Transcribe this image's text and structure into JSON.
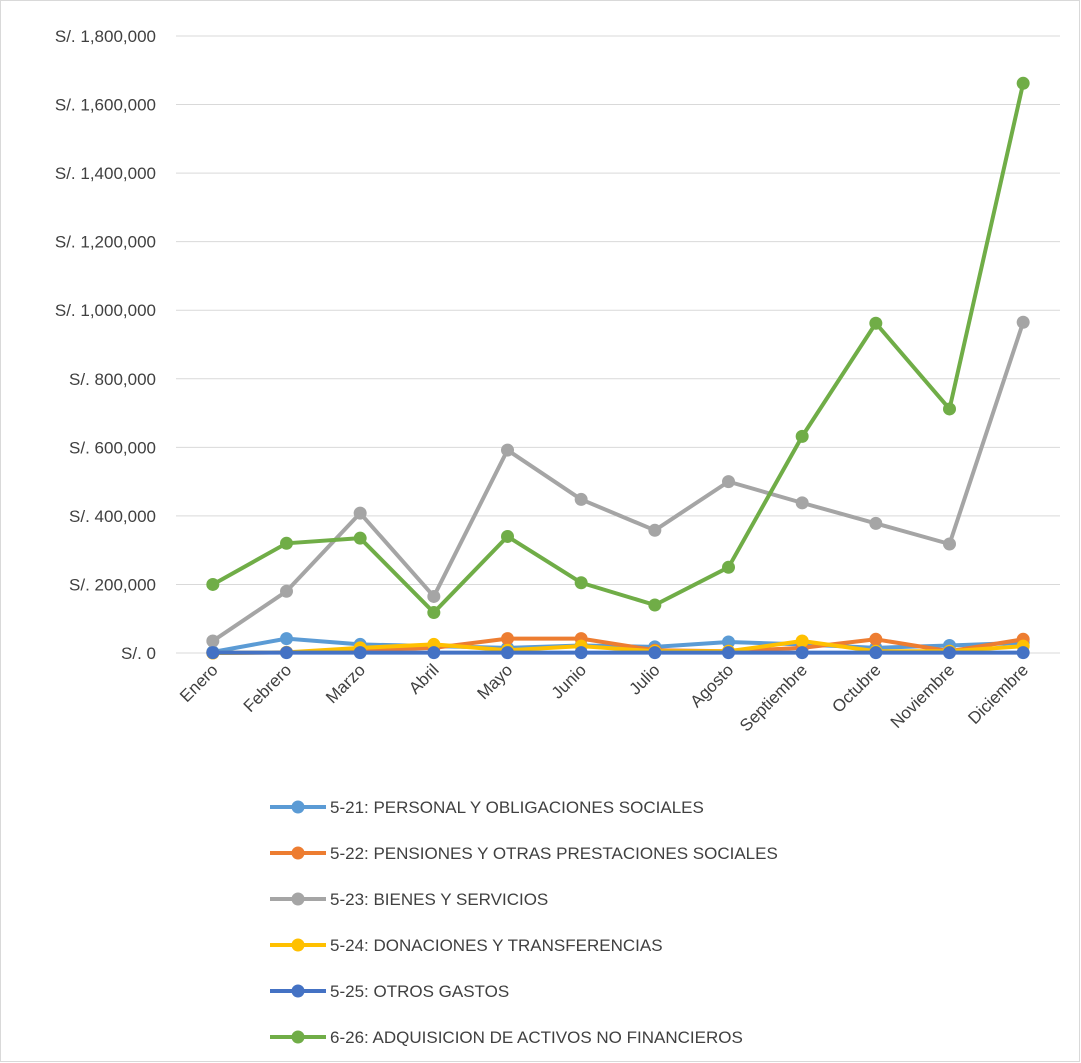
{
  "chart_data": {
    "type": "line",
    "categories": [
      "Enero",
      "Febrero",
      "Marzo",
      "Abril",
      "Mayo",
      "Junio",
      "Julio",
      "Agosto",
      "Septiembre",
      "Octubre",
      "Noviembre",
      "Diciembre"
    ],
    "series": [
      {
        "name": "5-21: PERSONAL Y OBLIGACIONES SOCIALES",
        "color": "#5b9bd5",
        "values": [
          3000,
          42000,
          25000,
          20000,
          15000,
          22000,
          18000,
          32000,
          25000,
          15000,
          22000,
          30000
        ]
      },
      {
        "name": "5-22: PENSIONES Y OTRAS PRESTACIONES SOCIALES",
        "color": "#ed7d31",
        "values": [
          0,
          2000,
          8000,
          15000,
          42000,
          42000,
          8000,
          5000,
          15000,
          40000,
          5000,
          40000
        ]
      },
      {
        "name": "5-23: BIENES Y SERVICIOS",
        "color": "#a5a5a5",
        "values": [
          35000,
          180000,
          408000,
          165000,
          592000,
          448000,
          358000,
          500000,
          438000,
          378000,
          318000,
          965000
        ]
      },
      {
        "name": "5-24: DONACIONES Y TRANSFERENCIAS",
        "color": "#ffc000",
        "values": [
          0,
          2000,
          15000,
          25000,
          8000,
          20000,
          5000,
          5000,
          35000,
          5000,
          5000,
          20000
        ]
      },
      {
        "name": "5-25: OTROS GASTOS",
        "color": "#4472c4",
        "values": [
          1000,
          1000,
          1000,
          1000,
          1000,
          1000,
          1000,
          1000,
          1000,
          1000,
          1000,
          1000
        ]
      },
      {
        "name": "6-26: ADQUISICION DE ACTIVOS NO FINANCIEROS",
        "color": "#70ad47",
        "values": [
          200000,
          320000,
          335000,
          118000,
          340000,
          205000,
          140000,
          250000,
          632000,
          962000,
          712000,
          1662000
        ]
      }
    ],
    "ylim": [
      0,
      1800000
    ],
    "yticks": [
      {
        "value": 0,
        "label": "S/. 0"
      },
      {
        "value": 200000,
        "label": "S/. 200,000"
      },
      {
        "value": 400000,
        "label": "S/. 400,000"
      },
      {
        "value": 600000,
        "label": "S/. 600,000"
      },
      {
        "value": 800000,
        "label": "S/. 800,000"
      },
      {
        "value": 1000000,
        "label": "S/. 1,000,000"
      },
      {
        "value": 1200000,
        "label": "S/. 1,200,000"
      },
      {
        "value": 1400000,
        "label": "S/. 1,400,000"
      },
      {
        "value": 1600000,
        "label": "S/. 1,600,000"
      },
      {
        "value": 1800000,
        "label": "S/. 1,800,000"
      }
    ],
    "grid": true
  }
}
